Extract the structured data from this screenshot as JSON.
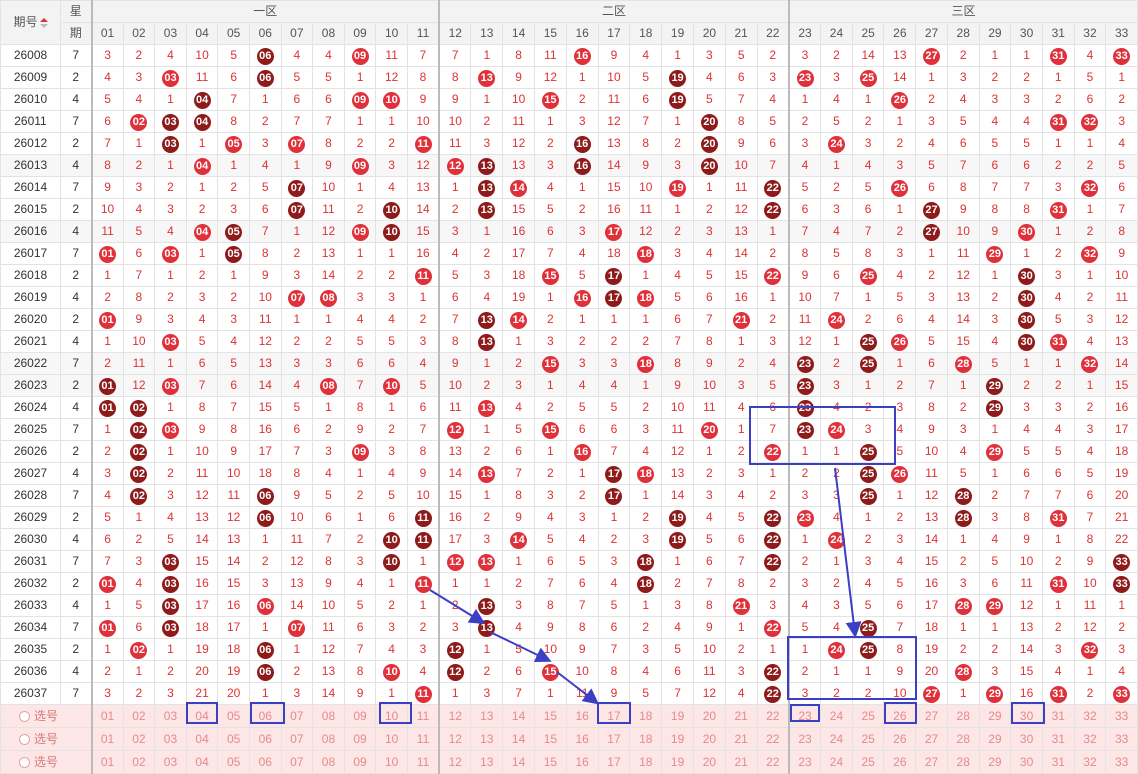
{
  "header": {
    "issue_label": "期号",
    "week_label_top": "星",
    "week_label_bottom": "期",
    "zones": [
      "一区",
      "二区",
      "三区"
    ],
    "columns": [
      "01",
      "02",
      "03",
      "04",
      "05",
      "06",
      "07",
      "08",
      "09",
      "10",
      "11",
      "12",
      "13",
      "14",
      "15",
      "16",
      "17",
      "18",
      "19",
      "20",
      "21",
      "22",
      "23",
      "24",
      "25",
      "26",
      "27",
      "28",
      "29",
      "30",
      "31",
      "32",
      "33"
    ]
  },
  "colors": {
    "ball_red": "#e0303a",
    "ball_dark": "#8e1a1a",
    "miss_text": "#dd3333",
    "pick_bg": "#fde6e6",
    "annotation": "#3a3fc4"
  },
  "rows": [
    {
      "issue": "26008",
      "week": "7",
      "cells": [
        "3",
        "2",
        "4",
        "10",
        "5",
        "06",
        "4",
        "4",
        "09",
        "11",
        "7",
        "7",
        "1",
        "8",
        "11",
        "16",
        "9",
        "4",
        "1",
        "3",
        "5",
        "2",
        "3",
        "2",
        "14",
        "13",
        "27",
        "2",
        "1",
        "1",
        "31",
        "4",
        "33"
      ],
      "bg": "w"
    },
    {
      "issue": "26009",
      "week": "2",
      "cells": [
        "4",
        "3",
        "03",
        "11",
        "6",
        "06",
        "5",
        "5",
        "1",
        "12",
        "8",
        "8",
        "13",
        "9",
        "12",
        "1",
        "10",
        "5",
        "19",
        "4",
        "6",
        "3",
        "23",
        "3",
        "25",
        "14",
        "1",
        "3",
        "2",
        "2",
        "1",
        "5",
        "1"
      ],
      "bg": "w"
    },
    {
      "issue": "26010",
      "week": "4",
      "cells": [
        "5",
        "4",
        "1",
        "04",
        "7",
        "1",
        "6",
        "6",
        "09",
        "10",
        "9",
        "9",
        "1",
        "10",
        "15",
        "2",
        "11",
        "6",
        "19",
        "5",
        "7",
        "4",
        "1",
        "4",
        "1",
        "26",
        "2",
        "4",
        "3",
        "3",
        "2",
        "6",
        "2"
      ],
      "bg": "w"
    },
    {
      "issue": "26011",
      "week": "7",
      "cells": [
        "6",
        "02",
        "03",
        "04",
        "8",
        "2",
        "7",
        "7",
        "1",
        "1",
        "10",
        "10",
        "2",
        "11",
        "1",
        "3",
        "12",
        "7",
        "1",
        "20",
        "8",
        "5",
        "2",
        "5",
        "2",
        "1",
        "3",
        "5",
        "4",
        "4",
        "31",
        "32",
        "3"
      ],
      "bg": "w"
    },
    {
      "issue": "26012",
      "week": "2",
      "cells": [
        "7",
        "1",
        "03",
        "1",
        "05",
        "3",
        "07",
        "8",
        "2",
        "2",
        "11",
        "11",
        "3",
        "12",
        "2",
        "16",
        "13",
        "8",
        "2",
        "20",
        "9",
        "6",
        "3",
        "24",
        "3",
        "2",
        "4",
        "6",
        "5",
        "5",
        "1",
        "1",
        "4"
      ],
      "bg": "w"
    },
    {
      "issue": "26013",
      "week": "4",
      "cells": [
        "8",
        "2",
        "1",
        "04",
        "1",
        "4",
        "1",
        "9",
        "09",
        "3",
        "12",
        "12",
        "13",
        "13",
        "3",
        "16",
        "14",
        "9",
        "3",
        "20",
        "10",
        "7",
        "4",
        "1",
        "4",
        "3",
        "5",
        "7",
        "6",
        "6",
        "2",
        "2",
        "5"
      ],
      "bg": "g"
    },
    {
      "issue": "26014",
      "week": "7",
      "cells": [
        "9",
        "3",
        "2",
        "1",
        "2",
        "5",
        "07",
        "10",
        "1",
        "4",
        "13",
        "1",
        "13",
        "14",
        "4",
        "1",
        "15",
        "10",
        "19",
        "1",
        "11",
        "22",
        "5",
        "2",
        "5",
        "26",
        "6",
        "8",
        "7",
        "7",
        "3",
        "32",
        "6"
      ],
      "bg": "w"
    },
    {
      "issue": "26015",
      "week": "2",
      "cells": [
        "10",
        "4",
        "3",
        "2",
        "3",
        "6",
        "07",
        "11",
        "2",
        "10",
        "14",
        "2",
        "13",
        "15",
        "5",
        "2",
        "16",
        "11",
        "1",
        "2",
        "12",
        "22",
        "6",
        "3",
        "6",
        "1",
        "27",
        "9",
        "8",
        "8",
        "31",
        "1",
        "7"
      ],
      "bg": "w"
    },
    {
      "issue": "26016",
      "week": "4",
      "cells": [
        "11",
        "5",
        "4",
        "04",
        "05",
        "7",
        "1",
        "12",
        "09",
        "10",
        "15",
        "3",
        "1",
        "16",
        "6",
        "3",
        "17",
        "12",
        "2",
        "3",
        "13",
        "1",
        "7",
        "4",
        "7",
        "2",
        "27",
        "10",
        "9",
        "30",
        "1",
        "2",
        "8"
      ],
      "bg": "g"
    },
    {
      "issue": "26017",
      "week": "7",
      "cells": [
        "01",
        "6",
        "03",
        "1",
        "05",
        "8",
        "2",
        "13",
        "1",
        "1",
        "16",
        "4",
        "2",
        "17",
        "7",
        "4",
        "18",
        "18",
        "3",
        "4",
        "14",
        "2",
        "8",
        "5",
        "8",
        "3",
        "1",
        "11",
        "29",
        "1",
        "2",
        "32",
        "9"
      ],
      "bg": "w"
    },
    {
      "issue": "26018",
      "week": "2",
      "cells": [
        "1",
        "7",
        "1",
        "2",
        "1",
        "9",
        "3",
        "14",
        "2",
        "2",
        "11",
        "5",
        "3",
        "18",
        "15",
        "5",
        "17",
        "1",
        "4",
        "5",
        "15",
        "22",
        "9",
        "6",
        "25",
        "4",
        "2",
        "12",
        "1",
        "30",
        "3",
        "1",
        "10"
      ],
      "bg": "w"
    },
    {
      "issue": "26019",
      "week": "4",
      "cells": [
        "2",
        "8",
        "2",
        "3",
        "2",
        "10",
        "07",
        "08",
        "3",
        "3",
        "1",
        "6",
        "4",
        "19",
        "1",
        "16",
        "17",
        "18",
        "5",
        "6",
        "16",
        "1",
        "10",
        "7",
        "1",
        "5",
        "3",
        "13",
        "2",
        "30",
        "4",
        "2",
        "11"
      ],
      "bg": "w"
    },
    {
      "issue": "26020",
      "week": "2",
      "cells": [
        "01",
        "9",
        "3",
        "4",
        "3",
        "11",
        "1",
        "1",
        "4",
        "4",
        "2",
        "7",
        "13",
        "14",
        "2",
        "1",
        "1",
        "1",
        "6",
        "7",
        "21",
        "2",
        "11",
        "24",
        "2",
        "6",
        "4",
        "14",
        "3",
        "30",
        "5",
        "3",
        "12"
      ],
      "bg": "w"
    },
    {
      "issue": "26021",
      "week": "4",
      "cells": [
        "1",
        "10",
        "03",
        "5",
        "4",
        "12",
        "2",
        "2",
        "5",
        "5",
        "3",
        "8",
        "13",
        "1",
        "3",
        "2",
        "2",
        "2",
        "7",
        "8",
        "1",
        "3",
        "12",
        "1",
        "25",
        "26",
        "5",
        "15",
        "4",
        "30",
        "31",
        "4",
        "13"
      ],
      "bg": "w"
    },
    {
      "issue": "26022",
      "week": "7",
      "cells": [
        "2",
        "11",
        "1",
        "6",
        "5",
        "13",
        "3",
        "3",
        "6",
        "6",
        "4",
        "9",
        "1",
        "2",
        "15",
        "3",
        "3",
        "18",
        "8",
        "9",
        "2",
        "4",
        "23",
        "2",
        "25",
        "1",
        "6",
        "28",
        "5",
        "1",
        "1",
        "32",
        "14"
      ],
      "bg": "g"
    },
    {
      "issue": "26023",
      "week": "2",
      "cells": [
        "01",
        "12",
        "03",
        "7",
        "6",
        "14",
        "4",
        "08",
        "7",
        "10",
        "5",
        "10",
        "2",
        "3",
        "1",
        "4",
        "4",
        "1",
        "9",
        "10",
        "3",
        "5",
        "23",
        "3",
        "1",
        "2",
        "7",
        "1",
        "29",
        "2",
        "2",
        "1",
        "15"
      ],
      "bg": "g"
    },
    {
      "issue": "26024",
      "week": "4",
      "cells": [
        "01",
        "02",
        "1",
        "8",
        "7",
        "15",
        "5",
        "1",
        "8",
        "1",
        "6",
        "11",
        "13",
        "4",
        "2",
        "5",
        "5",
        "2",
        "10",
        "11",
        "4",
        "6",
        "23",
        "4",
        "2",
        "3",
        "8",
        "2",
        "29",
        "3",
        "3",
        "2",
        "16"
      ],
      "bg": "w"
    },
    {
      "issue": "26025",
      "week": "7",
      "cells": [
        "1",
        "02",
        "03",
        "9",
        "8",
        "16",
        "6",
        "2",
        "9",
        "2",
        "7",
        "12",
        "1",
        "5",
        "15",
        "6",
        "6",
        "3",
        "11",
        "20",
        "1",
        "7",
        "23",
        "24",
        "3",
        "4",
        "9",
        "3",
        "1",
        "4",
        "4",
        "3",
        "17"
      ],
      "bg": "w"
    },
    {
      "issue": "26026",
      "week": "2",
      "cells": [
        "2",
        "02",
        "1",
        "10",
        "9",
        "17",
        "7",
        "3",
        "09",
        "3",
        "8",
        "13",
        "2",
        "6",
        "1",
        "16",
        "7",
        "4",
        "12",
        "1",
        "2",
        "22",
        "1",
        "1",
        "25",
        "5",
        "10",
        "4",
        "29",
        "5",
        "5",
        "4",
        "18"
      ],
      "bg": "w"
    },
    {
      "issue": "26027",
      "week": "4",
      "cells": [
        "3",
        "02",
        "2",
        "11",
        "10",
        "18",
        "8",
        "4",
        "1",
        "4",
        "9",
        "14",
        "13",
        "7",
        "2",
        "1",
        "17",
        "18",
        "13",
        "2",
        "3",
        "1",
        "2",
        "2",
        "25",
        "26",
        "11",
        "5",
        "1",
        "6",
        "6",
        "5",
        "19"
      ],
      "bg": "w"
    },
    {
      "issue": "26028",
      "week": "7",
      "cells": [
        "4",
        "02",
        "3",
        "12",
        "11",
        "06",
        "9",
        "5",
        "2",
        "5",
        "10",
        "15",
        "1",
        "8",
        "3",
        "2",
        "17",
        "1",
        "14",
        "3",
        "4",
        "2",
        "3",
        "3",
        "25",
        "1",
        "12",
        "28",
        "2",
        "7",
        "7",
        "6",
        "20"
      ],
      "bg": "w"
    },
    {
      "issue": "26029",
      "week": "2",
      "cells": [
        "5",
        "1",
        "4",
        "13",
        "12",
        "06",
        "10",
        "6",
        "1",
        "6",
        "11",
        "16",
        "2",
        "9",
        "4",
        "3",
        "1",
        "2",
        "19",
        "4",
        "5",
        "22",
        "23",
        "4",
        "1",
        "2",
        "13",
        "28",
        "3",
        "8",
        "31",
        "7",
        "21"
      ],
      "bg": "w"
    },
    {
      "issue": "26030",
      "week": "4",
      "cells": [
        "6",
        "2",
        "5",
        "14",
        "13",
        "1",
        "11",
        "7",
        "2",
        "10",
        "11",
        "17",
        "3",
        "14",
        "5",
        "4",
        "2",
        "3",
        "19",
        "5",
        "6",
        "22",
        "1",
        "24",
        "2",
        "3",
        "14",
        "1",
        "4",
        "9",
        "1",
        "8",
        "22"
      ],
      "bg": "w"
    },
    {
      "issue": "26031",
      "week": "7",
      "cells": [
        "7",
        "3",
        "03",
        "15",
        "14",
        "2",
        "12",
        "8",
        "3",
        "10",
        "1",
        "12",
        "13",
        "1",
        "6",
        "5",
        "3",
        "18",
        "1",
        "6",
        "7",
        "22",
        "2",
        "1",
        "3",
        "4",
        "15",
        "2",
        "5",
        "10",
        "2",
        "9",
        "33"
      ],
      "bg": "w"
    },
    {
      "issue": "26032",
      "week": "2",
      "cells": [
        "01",
        "4",
        "03",
        "16",
        "15",
        "3",
        "13",
        "9",
        "4",
        "1",
        "11",
        "1",
        "1",
        "2",
        "7",
        "6",
        "4",
        "18",
        "2",
        "7",
        "8",
        "2",
        "3",
        "2",
        "4",
        "5",
        "16",
        "3",
        "6",
        "11",
        "31",
        "10",
        "33"
      ],
      "bg": "w"
    },
    {
      "issue": "26033",
      "week": "4",
      "cells": [
        "1",
        "5",
        "03",
        "17",
        "16",
        "06",
        "14",
        "10",
        "5",
        "2",
        "1",
        "2",
        "13",
        "3",
        "8",
        "7",
        "5",
        "1",
        "3",
        "8",
        "21",
        "3",
        "4",
        "3",
        "5",
        "6",
        "17",
        "28",
        "29",
        "12",
        "1",
        "11",
        "1"
      ],
      "bg": "w"
    },
    {
      "issue": "26034",
      "week": "7",
      "cells": [
        "01",
        "6",
        "03",
        "18",
        "17",
        "1",
        "07",
        "11",
        "6",
        "3",
        "2",
        "3",
        "13",
        "4",
        "9",
        "8",
        "6",
        "2",
        "4",
        "9",
        "1",
        "22",
        "5",
        "4",
        "25",
        "7",
        "18",
        "1",
        "1",
        "13",
        "2",
        "12",
        "2"
      ],
      "bg": "w"
    },
    {
      "issue": "26035",
      "week": "2",
      "cells": [
        "1",
        "02",
        "1",
        "19",
        "18",
        "06",
        "1",
        "12",
        "7",
        "4",
        "3",
        "12",
        "1",
        "5",
        "10",
        "9",
        "7",
        "3",
        "5",
        "10",
        "2",
        "1",
        "1",
        "24",
        "25",
        "8",
        "19",
        "2",
        "2",
        "14",
        "3",
        "32",
        "3"
      ],
      "bg": "w"
    },
    {
      "issue": "26036",
      "week": "4",
      "cells": [
        "2",
        "1",
        "2",
        "20",
        "19",
        "06",
        "2",
        "13",
        "8",
        "10",
        "4",
        "12",
        "2",
        "6",
        "15",
        "10",
        "8",
        "4",
        "6",
        "11",
        "3",
        "22",
        "2",
        "1",
        "1",
        "9",
        "20",
        "28",
        "3",
        "15",
        "4",
        "1",
        "4"
      ],
      "bg": "w"
    },
    {
      "issue": "26037",
      "week": "7",
      "cells": [
        "3",
        "2",
        "3",
        "21",
        "20",
        "1",
        "3",
        "14",
        "9",
        "1",
        "11",
        "1",
        "3",
        "7",
        "1",
        "11",
        "9",
        "5",
        "7",
        "12",
        "4",
        "22",
        "3",
        "2",
        "2",
        "10",
        "27",
        "1",
        "29",
        "16",
        "31",
        "2",
        "33"
      ],
      "bg": "w"
    }
  ],
  "pick_rows": [
    {
      "label": "选号"
    },
    {
      "label": "选号"
    },
    {
      "label": "选号"
    }
  ]
}
